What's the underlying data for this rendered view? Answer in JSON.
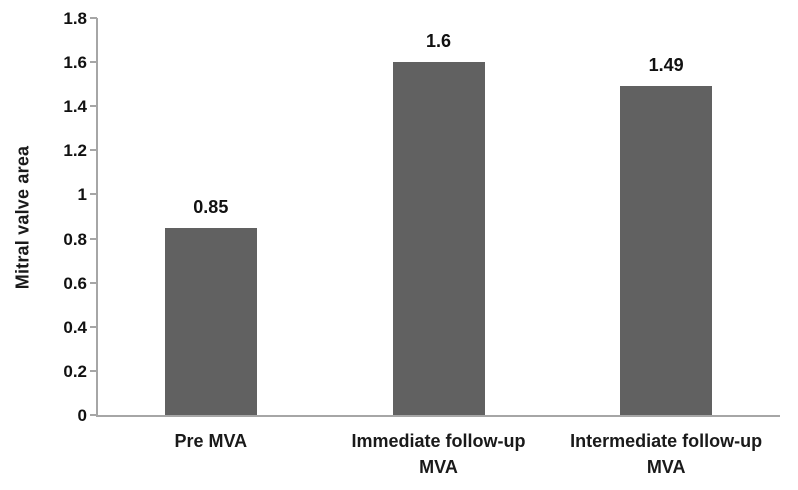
{
  "chart_data": {
    "type": "bar",
    "title": "",
    "xlabel": "",
    "ylabel": "Mitral valve area",
    "categories": [
      "Pre MVA",
      "Immediate follow-up MVA",
      "Intermediate follow-up MVA"
    ],
    "category_lines": [
      [
        "Pre MVA"
      ],
      [
        "Immediate follow-up",
        "MVA"
      ],
      [
        "Intermediate follow-up",
        "MVA"
      ]
    ],
    "values": [
      0.85,
      1.6,
      1.49
    ],
    "value_labels": [
      "0.85",
      "1.6",
      "1.49"
    ],
    "ylim": [
      0,
      1.8
    ],
    "yticks": [
      "0",
      "0.2",
      "0.4",
      "0.6",
      "0.8",
      "1",
      "1.2",
      "1.4",
      "1.6",
      "1.8"
    ],
    "grid": false,
    "legend": false,
    "colors": {
      "bar": "#616161",
      "axis": "#a6a6a6",
      "text": "#111111"
    }
  }
}
